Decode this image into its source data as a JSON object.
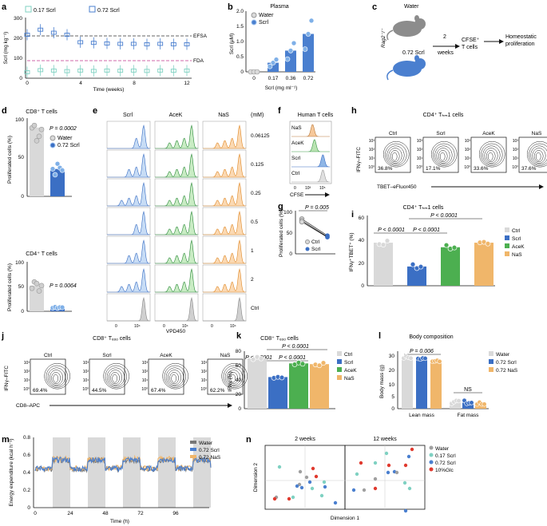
{
  "panels": {
    "a": {
      "label": "a",
      "ylabel": "Scrl (mg kg⁻¹)",
      "xlabel": "Time (weeks)",
      "legend": [
        "0.17 Scrl",
        "0.72 Scrl"
      ],
      "refs": [
        "EFSA",
        "FDA"
      ],
      "yticks": [
        "300",
        "200",
        "100",
        "0"
      ],
      "xticks": [
        "0",
        "4",
        "8",
        "12"
      ]
    },
    "b": {
      "label": "b",
      "title": "Plasma",
      "ylabel": "Scrl (μM)",
      "xlabel": "Scrl (mg ml⁻¹)",
      "legend": [
        "Water",
        "Scrl"
      ],
      "yticks": [
        "0",
        "0.5",
        "1.0",
        "1.5",
        "2.0"
      ],
      "xticks": [
        "0",
        "0.17",
        "0.36",
        "0.72"
      ]
    },
    "c": {
      "label": "c",
      "water": "Water",
      "rag": "Rag2⁻/⁻",
      "scrl": "0.72 Scrl",
      "weeks1": "2",
      "weeks2": "weeks",
      "cells1": "CFSE⁺",
      "cells2": "T cells",
      "prolif1": "Homeostatic",
      "prolif2": "proliferation"
    },
    "d": {
      "label": "d",
      "top_title": "CD8⁺ T cells",
      "top_p": "P = 0.0002",
      "bottom_title": "CD4⁺ T cells",
      "bottom_p": "P = 0.0064",
      "ylabel": "Proliferated cells (%)",
      "legend": [
        "Water",
        "0.72 Scrl"
      ],
      "yticks_top": [
        "0",
        "50",
        "100"
      ],
      "yticks_bottom": [
        "0",
        "50",
        "100"
      ]
    },
    "e": {
      "label": "e",
      "cols": [
        "Scrl",
        "AceK",
        "NaS"
      ],
      "unit": "(mM)",
      "rows": [
        "0.06125",
        "0.125",
        "0.25",
        "0.5",
        "1",
        "2",
        "Ctrl"
      ],
      "xlabel": "VPD450",
      "ticks": [
        "0",
        "10⁴"
      ]
    },
    "f": {
      "label": "f",
      "title": "Human T cells",
      "rows": [
        "NaS",
        "AceK",
        "Scrl",
        "Ctrl"
      ],
      "xlabel": "CFSE",
      "ticks": [
        "0",
        "10³",
        "10⁵"
      ]
    },
    "g": {
      "label": "g",
      "p": "P = 0.005",
      "ylabel": "Proliferated cells (%)",
      "legend": [
        "Ctrl",
        "Scrl"
      ],
      "yticks": [
        "0",
        "50",
        "100"
      ]
    },
    "h": {
      "label": "h",
      "title": "CD4⁺ Tₕₘ1 cells",
      "cols": [
        "Ctrl",
        "Scrl",
        "AceK",
        "NaS"
      ],
      "pct": [
        "36.8%",
        "17.1%",
        "33.6%",
        "37.6%"
      ],
      "ylabel": "IFNγ–FITC",
      "xlabel": "TBET–eFluor450"
    },
    "i": {
      "label": "i",
      "title": "CD4⁺ Tₕₘ1 cells",
      "ylabel": "IFNγ⁺TBET⁺ (%)",
      "p1": "P < 0.0001",
      "p2": "P < 0.0001",
      "p3": "P < 0.0001",
      "legend": [
        "Ctrl",
        "Scrl",
        "AceK",
        "NaS"
      ],
      "yticks": [
        "0",
        "20",
        "40",
        "60"
      ]
    },
    "j": {
      "label": "j",
      "title": "CD8⁺ Tₑₒₒ cells",
      "cols": [
        "Ctrl",
        "Scrl",
        "AceK",
        "NaS"
      ],
      "pct": [
        "69.4%",
        "44.5%",
        "67.4%",
        "62.2%"
      ],
      "ylabel": "IFNγ–FITC",
      "xlabel": "CD8–APC"
    },
    "k": {
      "label": "k",
      "title": "CD8⁺ Tₑₒₒ cells",
      "ylabel": "IFNγ (%)",
      "p1": "P < 0.0001",
      "p2": "P < 0.0001",
      "p3": "P < 0.0001",
      "legend": [
        "Ctrl",
        "Scrl",
        "AceK",
        "NaS"
      ],
      "yticks": [
        "0",
        "20",
        "40",
        "60",
        "80"
      ]
    },
    "l": {
      "label": "l",
      "title": "Body composition",
      "ylabel": "Body mass (g)",
      "p": "P = 0.006",
      "ns": "NS",
      "groups": [
        "Lean mass",
        "Fat mass"
      ],
      "legend": [
        "Water",
        "0.72 Scrl",
        "0.72 NaS"
      ],
      "yticks": [
        "0",
        "5",
        "10",
        "20",
        "30"
      ]
    },
    "m": {
      "label": "m",
      "ylabel": "Energy expenditure (kcal h⁻¹)",
      "xlabel": "Time (h)",
      "legend": [
        "Water",
        "0.72 Scrl",
        "0.72 NaS"
      ],
      "xticks": [
        "0",
        "24",
        "48",
        "72",
        "96"
      ],
      "yticks": [
        "0",
        "0.2",
        "0.4",
        "0.6",
        "0.8"
      ]
    },
    "n": {
      "label": "n",
      "left_title": "2 weeks",
      "right_title": "12 weeks",
      "xlabel": "Dimension 1",
      "ylabel": "Dimension 2",
      "legend": [
        "Water",
        "0.17 Scrl",
        "0.72 Scrl",
        "10%Glc"
      ]
    }
  },
  "colors": {
    "water": "#bfbfbf",
    "scrl017": "#7fd1c2",
    "scrl072": "#4a7fcf",
    "acek": "#4caf50",
    "nas": "#f0b66a",
    "glc": "#e03a2f",
    "efsa": "#333333",
    "fda": "#c0398f",
    "cd4scrl": "#3b6fc4",
    "shade": "#d9d9d9"
  },
  "chart_data": [
    {
      "type": "line",
      "panel": "a",
      "x": [
        0,
        1,
        2,
        3,
        4,
        5,
        6,
        7,
        8,
        9,
        10,
        11,
        12
      ],
      "series": [
        {
          "name": "0.72 Scrl",
          "values": [
            215,
            240,
            225,
            215,
            178,
            175,
            172,
            170,
            170,
            168,
            170,
            168,
            168
          ]
        },
        {
          "name": "0.17 Scrl",
          "values": [
            30,
            40,
            38,
            35,
            38,
            36,
            38,
            37,
            38,
            36,
            38,
            37,
            38
          ]
        }
      ],
      "refs": [
        {
          "name": "EFSA",
          "y": 180
        },
        {
          "name": "FDA",
          "y": 60
        }
      ],
      "ylim": [
        0,
        300
      ],
      "xlim": [
        0,
        12
      ]
    },
    {
      "type": "bar",
      "panel": "b",
      "categories": [
        "0",
        "0.17",
        "0.36",
        "0.72"
      ],
      "values": [
        0.0,
        0.3,
        0.7,
        1.25
      ],
      "ylim": [
        0,
        2
      ]
    },
    {
      "type": "bar",
      "panel": "d-top",
      "categories": [
        "Water",
        "0.72 Scrl"
      ],
      "values": [
        88,
        35
      ],
      "ylim": [
        0,
        100
      ]
    },
    {
      "type": "bar",
      "panel": "d-bottom",
      "categories": [
        "Water",
        "0.72 Scrl"
      ],
      "values": [
        52,
        8
      ],
      "ylim": [
        0,
        100
      ]
    },
    {
      "type": "line",
      "panel": "g",
      "categories": [
        "Ctrl",
        "Scrl"
      ],
      "values": [
        80,
        42
      ],
      "ylim": [
        0,
        100
      ]
    },
    {
      "type": "bar",
      "panel": "i",
      "categories": [
        "Ctrl",
        "Scrl",
        "AceK",
        "NaS"
      ],
      "values": [
        38,
        17,
        34,
        38
      ],
      "ylim": [
        0,
        60
      ]
    },
    {
      "type": "bar",
      "panel": "k",
      "categories": [
        "Ctrl",
        "Scrl",
        "AceK",
        "NaS"
      ],
      "values": [
        70,
        44,
        63,
        62
      ],
      "ylim": [
        0,
        80
      ]
    },
    {
      "type": "bar",
      "panel": "l",
      "categories": [
        "Lean mass",
        "Fat mass"
      ],
      "series": [
        {
          "name": "Water",
          "values": [
            29,
            3
          ]
        },
        {
          "name": "0.72 Scrl",
          "values": [
            28,
            2.5
          ]
        },
        {
          "name": "0.72 NaS",
          "values": [
            27,
            2
          ]
        }
      ]
    },
    {
      "type": "line",
      "panel": "m",
      "x": [
        0,
        24,
        48,
        72,
        96
      ],
      "ylim": [
        0,
        0.8
      ]
    },
    {
      "type": "scatter",
      "panel": "n"
    }
  ]
}
